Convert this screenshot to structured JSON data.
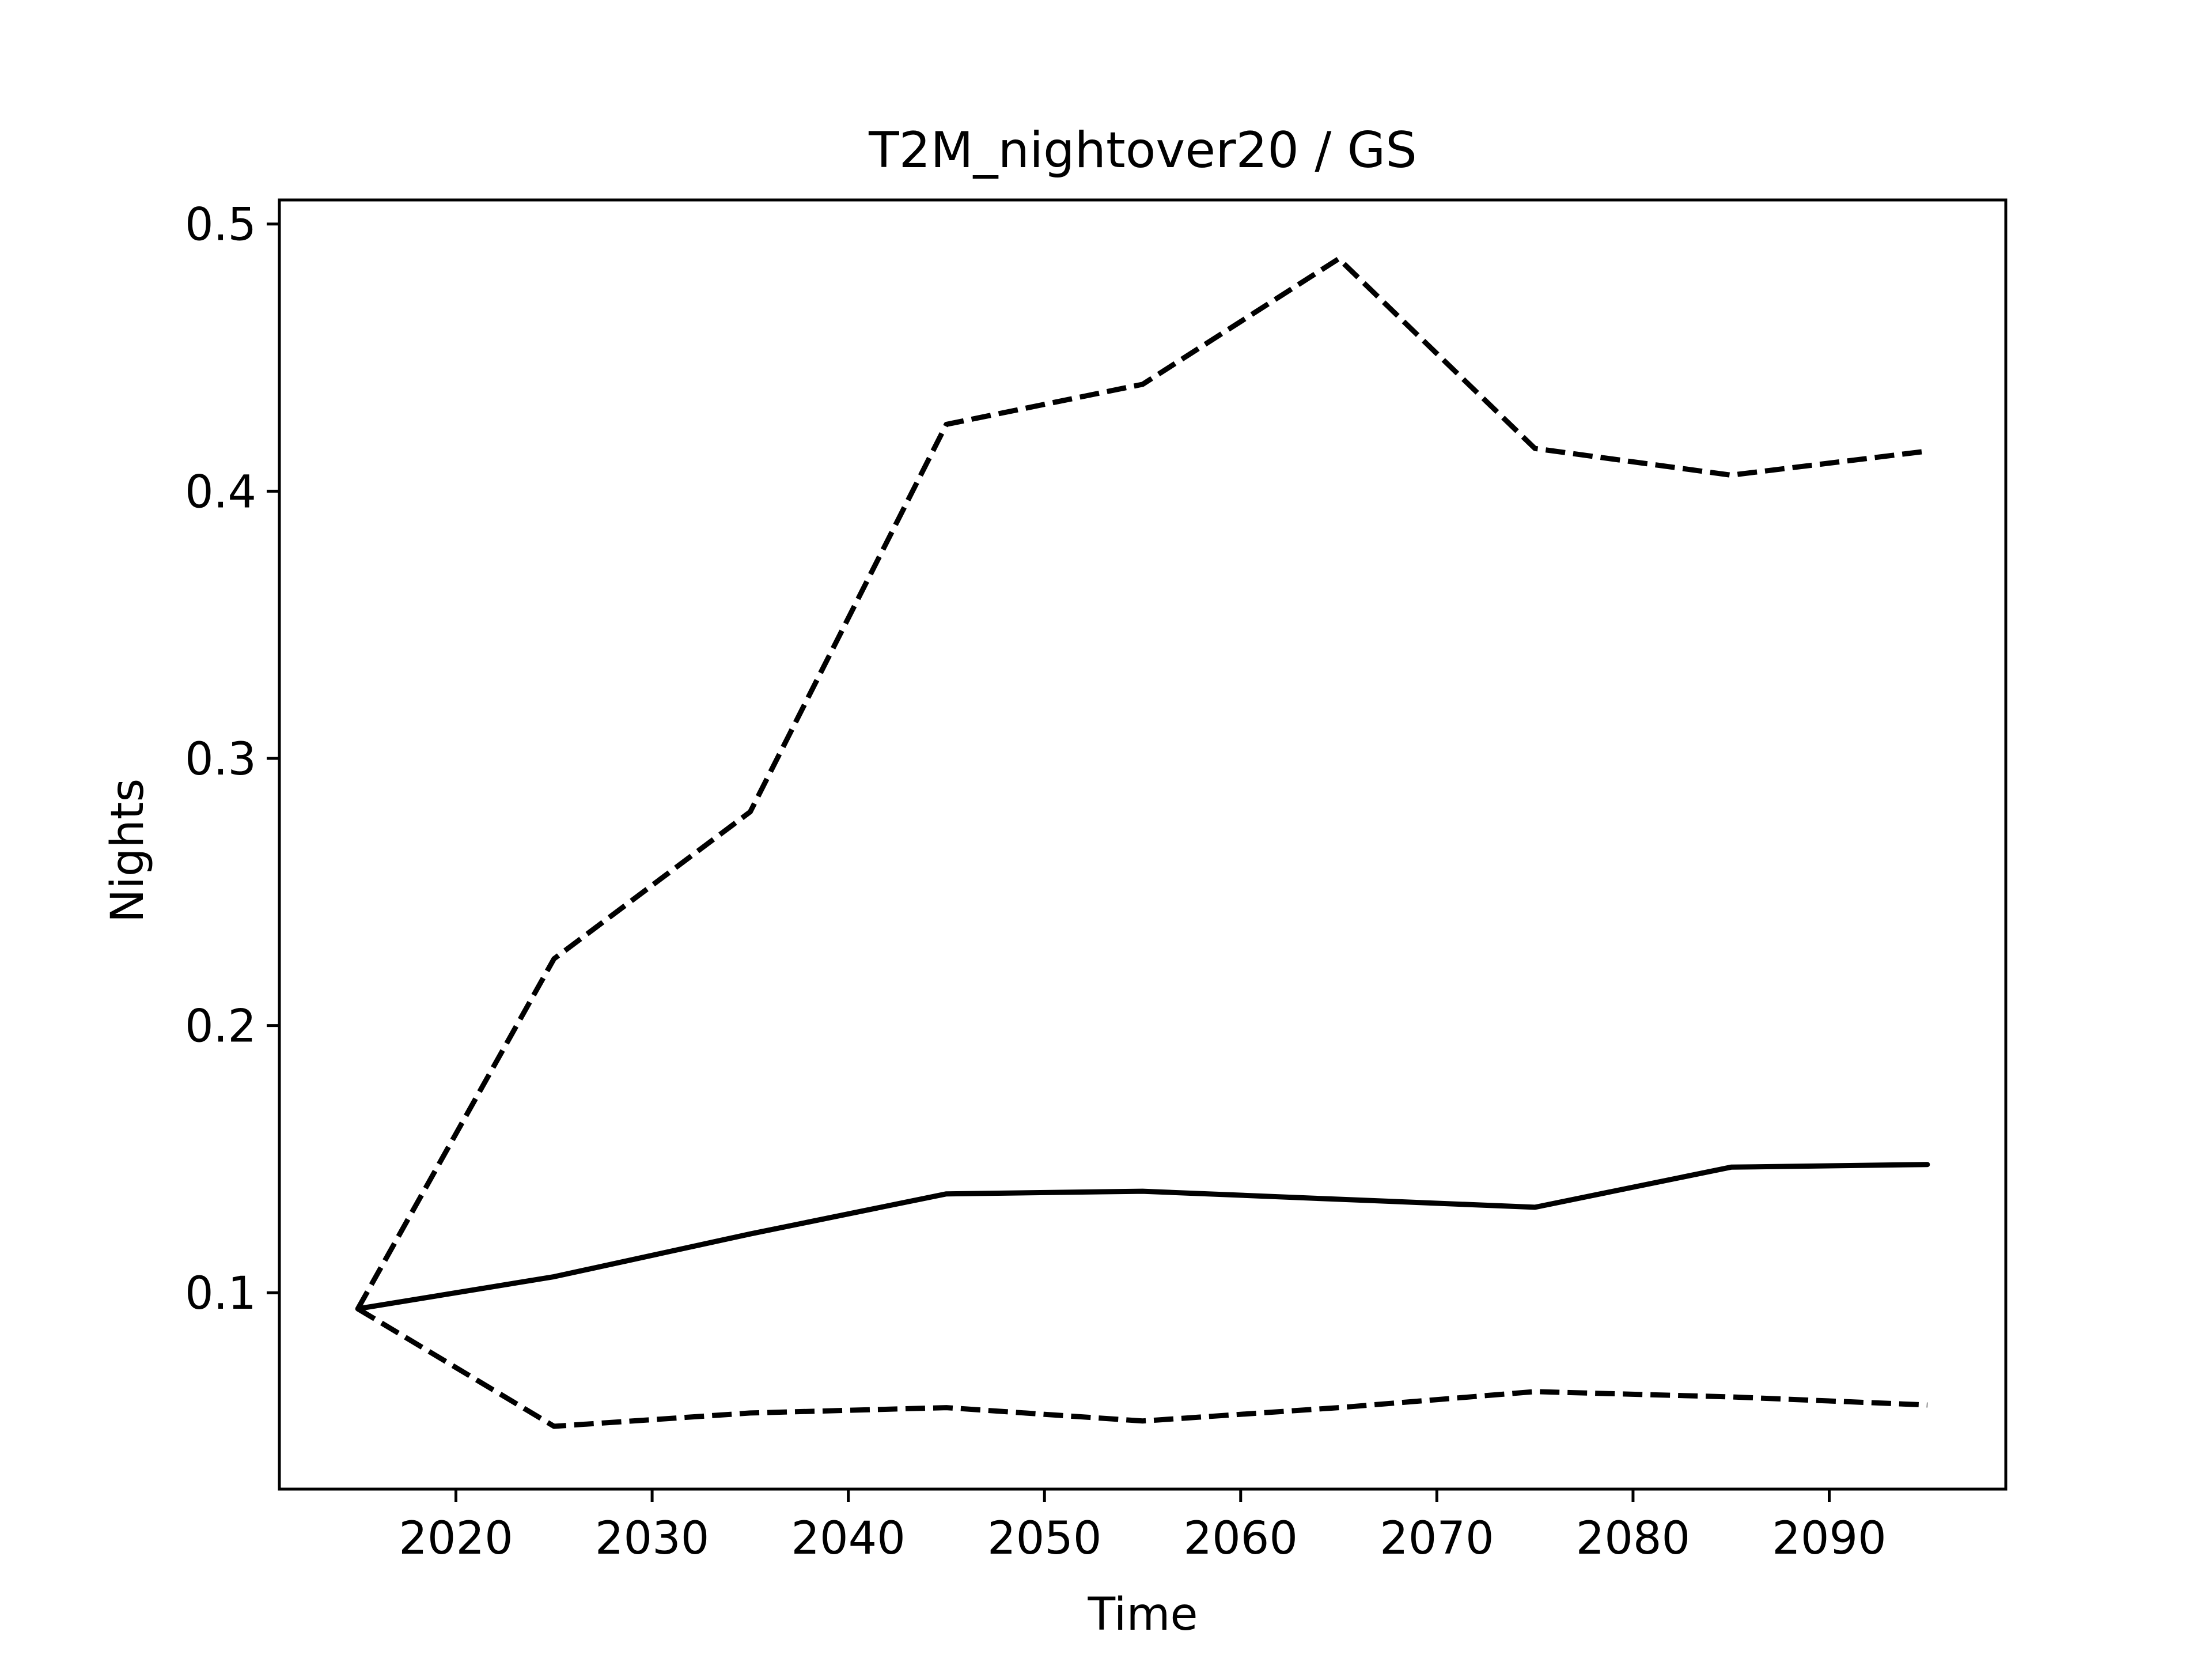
{
  "chart_data": {
    "type": "line",
    "title": "T2M_nightover20 / GS",
    "xlabel": "Time",
    "ylabel": "Nights",
    "xlim": [
      2011,
      2099
    ],
    "ylim": [
      0.0265,
      0.509
    ],
    "xticks": [
      2020,
      2030,
      2040,
      2050,
      2060,
      2070,
      2080,
      2090
    ],
    "xtick_labels": [
      "2020",
      "2030",
      "2040",
      "2050",
      "2060",
      "2070",
      "2080",
      "2090"
    ],
    "yticks": [
      0.1,
      0.2,
      0.3,
      0.4,
      0.5
    ],
    "ytick_labels": [
      "0.1",
      "0.2",
      "0.3",
      "0.4",
      "0.5"
    ],
    "grid": false,
    "legend": false,
    "x": [
      2015,
      2025,
      2035,
      2045,
      2055,
      2065,
      2075,
      2085,
      2095
    ],
    "series": [
      {
        "style": "solid",
        "color": "#000000",
        "values": [
          0.094,
          0.106,
          0.122,
          0.137,
          0.138,
          0.135,
          0.132,
          0.147,
          0.148
        ]
      },
      {
        "style": "dashed",
        "color": "#000000",
        "values": [
          0.094,
          0.225,
          0.28,
          0.425,
          0.44,
          0.487,
          0.416,
          0.406,
          0.415
        ]
      },
      {
        "style": "dashed",
        "color": "#000000",
        "values": [
          0.094,
          0.05,
          0.055,
          0.057,
          0.052,
          0.057,
          0.063,
          0.061,
          0.058
        ]
      }
    ]
  }
}
